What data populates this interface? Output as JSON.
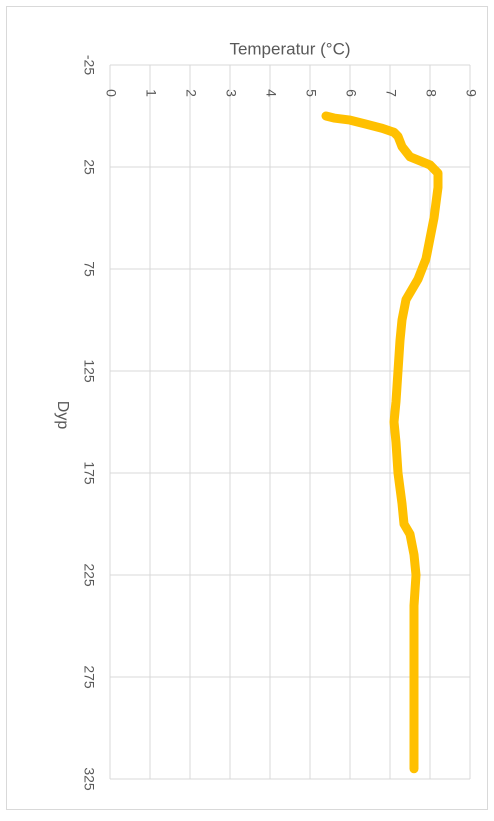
{
  "chart_data": {
    "type": "line",
    "title": "Temperatur (°C)",
    "x_label": "Dyp",
    "x": [
      0,
      1,
      2,
      4,
      6,
      8,
      10,
      15,
      20,
      24,
      28,
      35,
      50,
      60,
      70,
      80,
      90,
      100,
      110,
      125,
      140,
      150,
      160,
      175,
      190,
      200,
      205,
      215,
      225,
      240,
      260,
      280,
      300,
      320
    ],
    "values": [
      5.4,
      5.6,
      6.0,
      6.4,
      6.8,
      7.1,
      7.2,
      7.3,
      7.5,
      8.0,
      8.2,
      8.2,
      8.1,
      8.0,
      7.9,
      7.7,
      7.4,
      7.3,
      7.25,
      7.2,
      7.15,
      7.1,
      7.15,
      7.2,
      7.3,
      7.35,
      7.5,
      7.6,
      7.65,
      7.6,
      7.6,
      7.6,
      7.6,
      7.6
    ],
    "color": "#ffc000",
    "xlim": [
      -25,
      325
    ],
    "xticks": [
      -25,
      25,
      75,
      125,
      175,
      225,
      275,
      325
    ],
    "ylim": [
      0,
      9
    ],
    "yticks": [
      0,
      1,
      2,
      3,
      4,
      5,
      6,
      7,
      8,
      9
    ],
    "grid": true
  }
}
